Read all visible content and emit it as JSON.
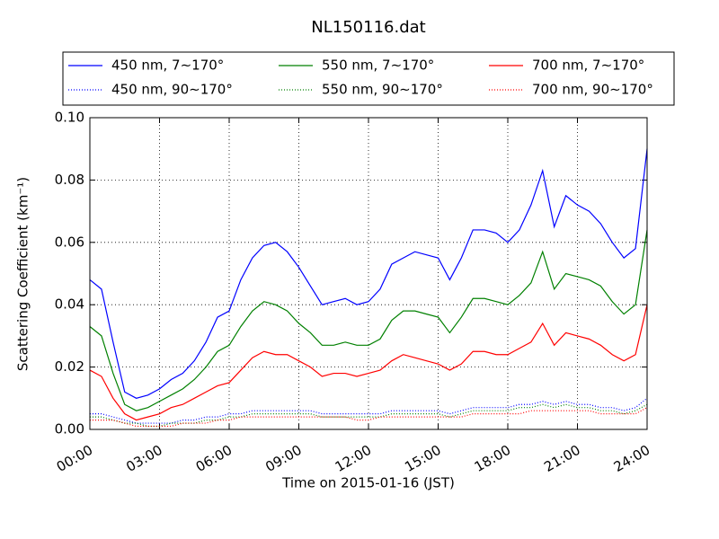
{
  "chart_data": {
    "type": "line",
    "title": "NL150116.dat",
    "xlabel": "Time on 2015-01-16 (JST)",
    "ylabel": "Scattering Coefficient (km⁻¹)",
    "x": [
      0,
      0.5,
      1,
      1.5,
      2,
      2.5,
      3,
      3.5,
      4,
      4.5,
      5,
      5.5,
      6,
      6.5,
      7,
      7.5,
      8,
      8.5,
      9,
      9.5,
      10,
      10.5,
      11,
      11.5,
      12,
      12.5,
      13,
      13.5,
      14,
      14.5,
      15,
      15.5,
      16,
      16.5,
      17,
      17.5,
      18,
      18.5,
      19,
      19.5,
      20,
      20.5,
      21,
      21.5,
      22,
      22.5,
      23,
      23.5,
      24
    ],
    "xlim": [
      0,
      24
    ],
    "xticks": [
      {
        "value": 0,
        "label": "00:00"
      },
      {
        "value": 3,
        "label": "03:00"
      },
      {
        "value": 6,
        "label": "06:00"
      },
      {
        "value": 9,
        "label": "09:00"
      },
      {
        "value": 12,
        "label": "12:00"
      },
      {
        "value": 15,
        "label": "15:00"
      },
      {
        "value": 18,
        "label": "18:00"
      },
      {
        "value": 21,
        "label": "21:00"
      },
      {
        "value": 24,
        "label": "24:00"
      }
    ],
    "ylim": [
      0,
      0.1
    ],
    "yticks": [
      {
        "value": 0,
        "label": "0.00"
      },
      {
        "value": 0.02,
        "label": "0.02"
      },
      {
        "value": 0.04,
        "label": "0.04"
      },
      {
        "value": 0.06,
        "label": "0.06"
      },
      {
        "value": 0.08,
        "label": "0.08"
      },
      {
        "value": 0.1,
        "label": "0.10"
      }
    ],
    "grid": true,
    "legend": "upper center",
    "legend_columns": 3,
    "series": [
      {
        "name": "450 nm, 7∼170°",
        "color": "#0000ff",
        "linestyle": "solid",
        "values": [
          0.048,
          0.045,
          0.028,
          0.012,
          0.01,
          0.011,
          0.013,
          0.016,
          0.018,
          0.022,
          0.028,
          0.036,
          0.038,
          0.048,
          0.055,
          0.059,
          0.06,
          0.057,
          0.052,
          0.046,
          0.04,
          0.041,
          0.042,
          0.04,
          0.041,
          0.045,
          0.053,
          0.055,
          0.057,
          0.056,
          0.055,
          0.048,
          0.055,
          0.064,
          0.064,
          0.063,
          0.06,
          0.064,
          0.072,
          0.083,
          0.065,
          0.075,
          0.072,
          0.07,
          0.066,
          0.06,
          0.055,
          0.058,
          0.09
        ]
      },
      {
        "name": "450 nm, 90∼170°",
        "color": "#0000ff",
        "linestyle": "dotted",
        "values": [
          0.005,
          0.005,
          0.004,
          0.003,
          0.002,
          0.002,
          0.002,
          0.002,
          0.003,
          0.003,
          0.004,
          0.004,
          0.005,
          0.005,
          0.006,
          0.006,
          0.006,
          0.006,
          0.006,
          0.006,
          0.005,
          0.005,
          0.005,
          0.005,
          0.005,
          0.005,
          0.006,
          0.006,
          0.006,
          0.006,
          0.006,
          0.005,
          0.006,
          0.007,
          0.007,
          0.007,
          0.007,
          0.008,
          0.008,
          0.009,
          0.008,
          0.009,
          0.008,
          0.008,
          0.007,
          0.007,
          0.006,
          0.007,
          0.01
        ]
      },
      {
        "name": "550 nm, 7∼170°",
        "color": "#008000",
        "linestyle": "solid",
        "values": [
          0.033,
          0.03,
          0.018,
          0.008,
          0.006,
          0.007,
          0.009,
          0.011,
          0.013,
          0.016,
          0.02,
          0.025,
          0.027,
          0.033,
          0.038,
          0.041,
          0.04,
          0.038,
          0.034,
          0.031,
          0.027,
          0.027,
          0.028,
          0.027,
          0.027,
          0.029,
          0.035,
          0.038,
          0.038,
          0.037,
          0.036,
          0.031,
          0.036,
          0.042,
          0.042,
          0.041,
          0.04,
          0.043,
          0.047,
          0.057,
          0.045,
          0.05,
          0.049,
          0.048,
          0.046,
          0.041,
          0.037,
          0.04,
          0.064
        ]
      },
      {
        "name": "550 nm, 90∼170°",
        "color": "#008000",
        "linestyle": "dotted",
        "values": [
          0.004,
          0.004,
          0.003,
          0.002,
          0.002,
          0.001,
          0.001,
          0.002,
          0.002,
          0.002,
          0.003,
          0.003,
          0.004,
          0.004,
          0.005,
          0.005,
          0.005,
          0.005,
          0.005,
          0.005,
          0.004,
          0.004,
          0.004,
          0.004,
          0.004,
          0.004,
          0.005,
          0.005,
          0.005,
          0.005,
          0.005,
          0.004,
          0.005,
          0.006,
          0.006,
          0.006,
          0.006,
          0.007,
          0.007,
          0.008,
          0.007,
          0.008,
          0.007,
          0.007,
          0.006,
          0.006,
          0.005,
          0.006,
          0.008
        ]
      },
      {
        "name": "700 nm, 7∼170°",
        "color": "#ff0000",
        "linestyle": "solid",
        "values": [
          0.019,
          0.017,
          0.01,
          0.005,
          0.003,
          0.004,
          0.005,
          0.007,
          0.008,
          0.01,
          0.012,
          0.014,
          0.015,
          0.019,
          0.023,
          0.025,
          0.024,
          0.024,
          0.022,
          0.02,
          0.017,
          0.018,
          0.018,
          0.017,
          0.018,
          0.019,
          0.022,
          0.024,
          0.023,
          0.022,
          0.021,
          0.019,
          0.021,
          0.025,
          0.025,
          0.024,
          0.024,
          0.026,
          0.028,
          0.034,
          0.027,
          0.031,
          0.03,
          0.029,
          0.027,
          0.024,
          0.022,
          0.024,
          0.04
        ]
      },
      {
        "name": "700 nm, 90∼170°",
        "color": "#ff0000",
        "linestyle": "dotted",
        "values": [
          0.003,
          0.003,
          0.003,
          0.002,
          0.001,
          0.001,
          0.001,
          0.001,
          0.002,
          0.002,
          0.002,
          0.003,
          0.003,
          0.004,
          0.004,
          0.004,
          0.004,
          0.004,
          0.004,
          0.004,
          0.004,
          0.004,
          0.004,
          0.003,
          0.003,
          0.004,
          0.004,
          0.004,
          0.004,
          0.004,
          0.004,
          0.004,
          0.004,
          0.005,
          0.005,
          0.005,
          0.005,
          0.005,
          0.006,
          0.006,
          0.006,
          0.006,
          0.006,
          0.006,
          0.005,
          0.005,
          0.005,
          0.005,
          0.007
        ]
      }
    ]
  }
}
